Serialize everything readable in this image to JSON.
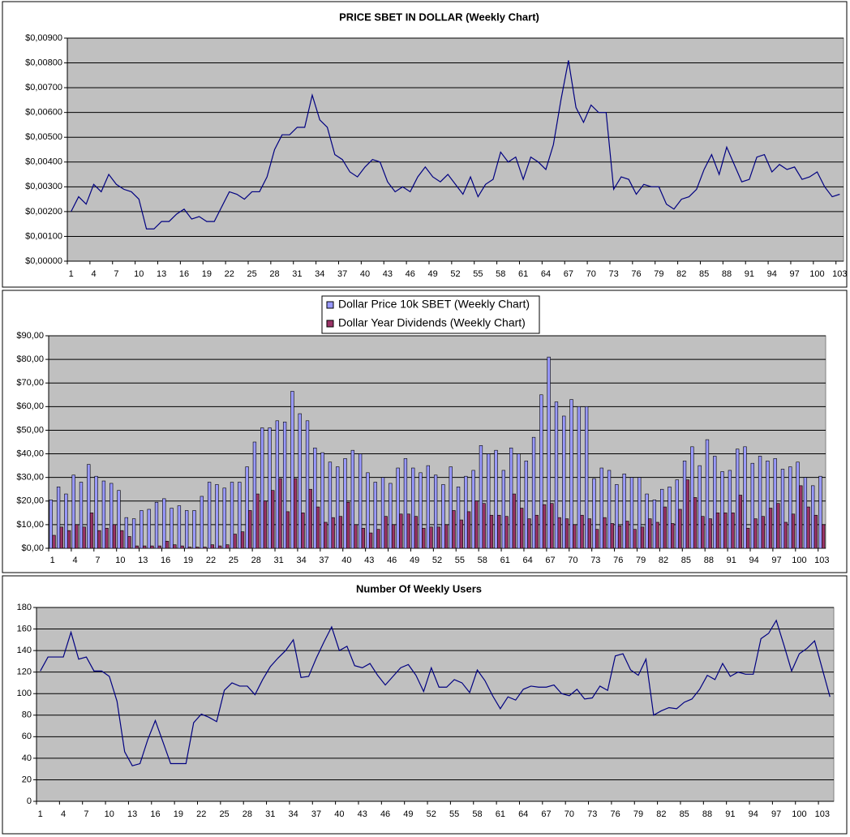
{
  "chart_data": [
    {
      "type": "line",
      "title": "PRICE SBET IN DOLLAR (Weekly Chart)",
      "categories": [
        "1",
        null,
        null,
        "4",
        null,
        null,
        "7",
        null,
        null,
        "10",
        null,
        null,
        "13",
        null,
        null,
        "16",
        null,
        null,
        "19",
        null,
        null,
        "22",
        null,
        null,
        "25",
        null,
        null,
        "28",
        null,
        null,
        "31",
        null,
        null,
        "34",
        null,
        null,
        "37",
        null,
        null,
        "40",
        null,
        null,
        "43",
        null,
        null,
        "46",
        null,
        null,
        "49",
        null,
        null,
        "52",
        null,
        null,
        "55",
        null,
        null,
        "58",
        null,
        null,
        "61",
        null,
        null,
        "64",
        null,
        null,
        "67",
        null,
        null,
        "70",
        null,
        null,
        "73",
        null,
        null,
        "76",
        null,
        null,
        "79",
        null,
        null,
        "82",
        null,
        null,
        "85",
        null,
        null,
        "88",
        null,
        null,
        "91",
        null,
        null,
        "94",
        null,
        null,
        "97",
        null,
        null,
        "100",
        null,
        null,
        "103"
      ],
      "series": [
        {
          "name": "PRICE SBET IN DOLLAR",
          "color": "#000080",
          "values": [
            0.002,
            0.0026,
            0.0023,
            0.0031,
            0.0028,
            0.0035,
            0.0031,
            0.0029,
            0.0028,
            0.0025,
            0.0013,
            0.0013,
            0.0016,
            0.0016,
            0.0019,
            0.0021,
            0.0017,
            0.0018,
            0.0016,
            0.0016,
            0.0022,
            0.0028,
            0.0027,
            0.0025,
            0.0028,
            0.0028,
            0.0034,
            0.0045,
            0.0051,
            0.0051,
            0.0054,
            0.0054,
            0.0067,
            0.0057,
            0.0054,
            0.0043,
            0.0041,
            0.0036,
            0.0034,
            0.0038,
            0.0041,
            0.004,
            0.0032,
            0.0028,
            0.003,
            0.0028,
            0.0034,
            0.0038,
            0.0034,
            0.0032,
            0.0035,
            0.0031,
            0.0027,
            0.0034,
            0.0026,
            0.0031,
            0.0033,
            0.0044,
            0.004,
            0.0042,
            0.0033,
            0.0042,
            0.004,
            0.0037,
            0.0047,
            0.0065,
            0.0081,
            0.0062,
            0.0056,
            0.0063,
            0.006,
            0.006,
            0.0029,
            0.0034,
            0.0033,
            0.0027,
            0.0031,
            0.003,
            0.003,
            0.0023,
            0.0021,
            0.0025,
            0.0026,
            0.0029,
            0.0037,
            0.0043,
            0.0035,
            0.0046,
            0.0039,
            0.0032,
            0.0033,
            0.0042,
            0.0043,
            0.0036,
            0.0039,
            0.0037,
            0.0038,
            0.0033,
            0.0034,
            0.0036,
            0.003,
            0.0026,
            0.0027
          ]
        }
      ],
      "ylim": [
        0,
        0.009
      ],
      "yticks": [
        {
          "value": 0,
          "label": "$0,00000"
        },
        {
          "value": 0.001,
          "label": "$0,00100"
        },
        {
          "value": 0.002,
          "label": "$0,00200"
        },
        {
          "value": 0.003,
          "label": "$0,00300"
        },
        {
          "value": 0.004,
          "label": "$0,00400"
        },
        {
          "value": 0.005,
          "label": "$0,00500"
        },
        {
          "value": 0.006,
          "label": "$0,00600"
        },
        {
          "value": 0.007,
          "label": "$0,00700"
        },
        {
          "value": 0.008,
          "label": "$0,00800"
        },
        {
          "value": 0.009,
          "label": "$0,00900"
        }
      ],
      "grid": true
    },
    {
      "type": "bar",
      "categories": [
        "1",
        null,
        null,
        "4",
        null,
        null,
        "7",
        null,
        null,
        "10",
        null,
        null,
        "13",
        null,
        null,
        "16",
        null,
        null,
        "19",
        null,
        null,
        "22",
        null,
        null,
        "25",
        null,
        null,
        "28",
        null,
        null,
        "31",
        null,
        null,
        "34",
        null,
        null,
        "37",
        null,
        null,
        "40",
        null,
        null,
        "43",
        null,
        null,
        "46",
        null,
        null,
        "49",
        null,
        null,
        "52",
        null,
        null,
        "55",
        null,
        null,
        "58",
        null,
        null,
        "61",
        null,
        null,
        "64",
        null,
        null,
        "67",
        null,
        null,
        "70",
        null,
        null,
        "73",
        null,
        null,
        "76",
        null,
        null,
        "79",
        null,
        null,
        "82",
        null,
        null,
        "85",
        null,
        null,
        "88",
        null,
        null,
        "91",
        null,
        null,
        "94",
        null,
        null,
        "97",
        null,
        null,
        "100",
        null,
        null,
        "103"
      ],
      "series": [
        {
          "name": "Dollar Price 10k SBET (Weekly Chart)",
          "color": "#9999ff",
          "values": [
            20.5,
            26,
            23,
            31,
            28,
            35.5,
            30.5,
            28.5,
            27.5,
            24.5,
            13,
            12.5,
            16,
            16.5,
            19.5,
            21,
            17,
            18,
            16,
            16,
            22,
            28,
            27,
            25.5,
            28,
            28,
            34.5,
            45,
            51,
            51,
            54,
            53.5,
            66.5,
            57,
            54,
            42.5,
            40.5,
            36.5,
            34.5,
            38,
            41.5,
            40,
            32,
            28,
            30,
            27.5,
            34,
            38,
            34,
            32,
            35,
            31,
            27,
            34.5,
            26,
            30.5,
            33,
            43.5,
            40,
            41.5,
            33,
            42.5,
            40,
            37,
            47,
            65,
            81,
            62,
            56,
            63,
            60,
            60,
            29.5,
            34,
            33,
            27,
            31.5,
            30,
            30,
            23,
            20.5,
            25,
            26,
            29,
            37,
            43,
            35,
            46,
            39,
            32.5,
            33,
            42,
            43,
            36,
            39,
            37,
            38,
            33.5,
            34.5,
            36.5,
            30,
            26.5,
            30.5
          ]
        },
        {
          "name": "Dollar Year Dividends (Weekly Chart)",
          "color": "#993366",
          "values": [
            5.5,
            9,
            7.5,
            10,
            9,
            15,
            7.5,
            8.5,
            10,
            7.5,
            5,
            1,
            1,
            1,
            1,
            3,
            1.5,
            1,
            0.5,
            0.5,
            0.5,
            1.5,
            1,
            1.5,
            6,
            7,
            16,
            23,
            20,
            24.5,
            29.5,
            15.5,
            29.5,
            15,
            25,
            17.5,
            11,
            13,
            13.5,
            19.5,
            10,
            8.5,
            6.5,
            8,
            13.5,
            10,
            14.5,
            14.5,
            13.5,
            8.5,
            9,
            9,
            10,
            16,
            12,
            15.5,
            20,
            19,
            14,
            14,
            13.5,
            23,
            17,
            12.5,
            14,
            18.5,
            19,
            13,
            12.5,
            10,
            14,
            12.5,
            8,
            13,
            10.5,
            9.5,
            11.5,
            8,
            9,
            12.5,
            11,
            17.5,
            10.5,
            16.5,
            29,
            21.5,
            13.5,
            12.5,
            15,
            15,
            15,
            22.5,
            8.5,
            12.5,
            13.5,
            17,
            19,
            11,
            14.5,
            26.5,
            17.5,
            14,
            10
          ]
        }
      ],
      "ylim": [
        0,
        90
      ],
      "yticks": [
        {
          "value": 0,
          "label": "$0,00"
        },
        {
          "value": 10,
          "label": "$10,00"
        },
        {
          "value": 20,
          "label": "$20,00"
        },
        {
          "value": 30,
          "label": "$30,00"
        },
        {
          "value": 40,
          "label": "$40,00"
        },
        {
          "value": 50,
          "label": "$50,00"
        },
        {
          "value": 60,
          "label": "$60,00"
        },
        {
          "value": 70,
          "label": "$70,00"
        },
        {
          "value": 80,
          "label": "$80,00"
        },
        {
          "value": 90,
          "label": "$90,00"
        }
      ],
      "grid": true,
      "legend": "top"
    },
    {
      "type": "line",
      "title": "Number Of Weekly Users",
      "categories": [
        "1",
        null,
        null,
        "4",
        null,
        null,
        "7",
        null,
        null,
        "10",
        null,
        null,
        "13",
        null,
        null,
        "16",
        null,
        null,
        "19",
        null,
        null,
        "22",
        null,
        null,
        "25",
        null,
        null,
        "28",
        null,
        null,
        "31",
        null,
        null,
        "34",
        null,
        null,
        "37",
        null,
        null,
        "40",
        null,
        null,
        "43",
        null,
        null,
        "46",
        null,
        null,
        "49",
        null,
        null,
        "52",
        null,
        null,
        "55",
        null,
        null,
        "58",
        null,
        null,
        "61",
        null,
        null,
        "64",
        null,
        null,
        "67",
        null,
        null,
        "70",
        null,
        null,
        "73",
        null,
        null,
        "76",
        null,
        null,
        "79",
        null,
        null,
        "82",
        null,
        null,
        "85",
        null,
        null,
        "88",
        null,
        null,
        "91",
        null,
        null,
        "94",
        null,
        null,
        "97",
        null,
        null,
        "100",
        null,
        null,
        "103",
        null
      ],
      "series": [
        {
          "name": "Number Of Weekly Users",
          "color": "#000080",
          "values": [
            121,
            134,
            134,
            134,
            157,
            132,
            134,
            121,
            121,
            116,
            93,
            46,
            33,
            35,
            57,
            75,
            55,
            35,
            35,
            35,
            73,
            81,
            78,
            74,
            103,
            110,
            107,
            107,
            99,
            113,
            125,
            133,
            140,
            150,
            115,
            116,
            133,
            148,
            162,
            140,
            144,
            126,
            124,
            128,
            117,
            108,
            116,
            124,
            127,
            117,
            102,
            124,
            106,
            106,
            113,
            110,
            101,
            122,
            112,
            98,
            86,
            97,
            94,
            104,
            107,
            106,
            106,
            108,
            100,
            98,
            104,
            95,
            96,
            107,
            103,
            135,
            137,
            122,
            117,
            132,
            80,
            84,
            87,
            86,
            92,
            95,
            104,
            117,
            113,
            128,
            116,
            120,
            118,
            118,
            151,
            156,
            168,
            145,
            121,
            137,
            142,
            149,
            123,
            97
          ]
        }
      ],
      "ylim": [
        0,
        180
      ],
      "yticks": [
        0,
        20,
        40,
        60,
        80,
        100,
        120,
        140,
        160,
        180
      ],
      "grid": true
    }
  ]
}
